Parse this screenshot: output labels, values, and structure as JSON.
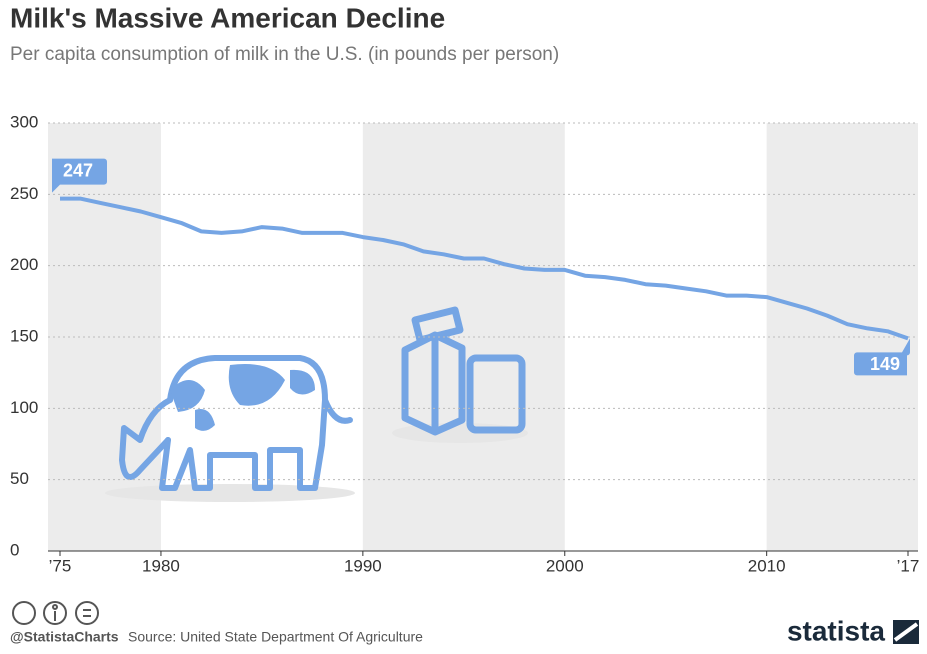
{
  "chart_data": {
    "type": "line",
    "title": "Milk's Massive American Decline",
    "subtitle": "Per capita consumption of milk in the U.S. (in pounds per person)",
    "x": [
      1975,
      1976,
      1977,
      1978,
      1979,
      1980,
      1981,
      1982,
      1983,
      1984,
      1985,
      1986,
      1987,
      1988,
      1989,
      1990,
      1991,
      1992,
      1993,
      1994,
      1995,
      1996,
      1997,
      1998,
      1999,
      2000,
      2001,
      2002,
      2003,
      2004,
      2005,
      2006,
      2007,
      2008,
      2009,
      2010,
      2011,
      2012,
      2013,
      2014,
      2015,
      2016,
      2017
    ],
    "values": [
      247,
      247,
      244,
      241,
      238,
      234,
      230,
      224,
      223,
      224,
      227,
      226,
      223,
      223,
      223,
      220,
      218,
      215,
      210,
      208,
      205,
      205,
      201,
      198,
      197,
      197,
      193,
      192,
      190,
      187,
      186,
      184,
      182,
      179,
      179,
      178,
      174,
      170,
      165,
      159,
      156,
      154,
      149
    ],
    "color": "#75a5e4",
    "xlim": [
      1975,
      2017
    ],
    "xticks": [
      {
        "value": 1975,
        "label": "’75"
      },
      1980,
      1990,
      2000,
      2010,
      {
        "value": 2017,
        "label": "’17"
      }
    ],
    "ylim": [
      0,
      300
    ],
    "yticks": [
      0,
      50,
      100,
      150,
      200,
      250,
      300
    ],
    "grid": true,
    "credit": "@StatistaCharts",
    "source": "Source: United State Department Of Agriculture",
    "brand": "statista"
  }
}
